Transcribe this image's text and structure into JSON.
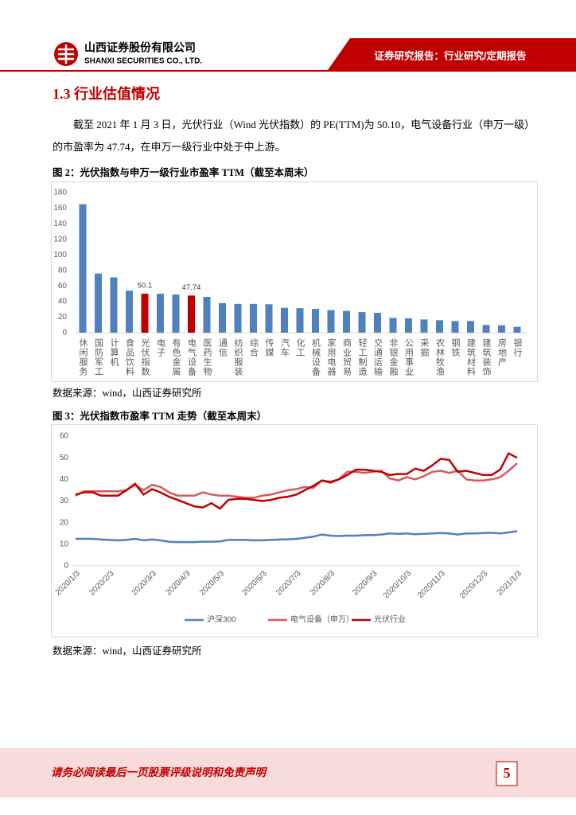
{
  "header": {
    "company_cn": "山西证券股份有限公司",
    "company_en": "SHANXI SECURITIES CO., LTD.",
    "report_type": "证券研究报告：行业研究/定期报告"
  },
  "section_title": "1.3 行业估值情况",
  "paragraph": "截至 2021 年 1 月 3 日，光伏行业（Wind 光伏指数）的 PE(TTM)为 50.10，电气设备行业（申万一级）的市盈率为 47.74，在申万一级行业中处于中上游。",
  "chart_data": [
    {
      "type": "bar",
      "title": "图 2：光伏指数与申万一级行业市盈率 TTM（截至本周末）",
      "categories": [
        "休闲服务",
        "国防军工",
        "计算机",
        "食品饮料",
        "光伏指数",
        "电子",
        "有色金属",
        "电气设备",
        "医药生物",
        "通信",
        "纺织服装",
        "综合",
        "传媒",
        "汽车",
        "化工",
        "机械设备",
        "家用电器",
        "商业贸易",
        "轻工制造",
        "交通运输",
        "非银金融",
        "公用事业",
        "采掘",
        "农林牧渔",
        "钢铁",
        "建筑材料",
        "建筑装饰",
        "房地产",
        "银行"
      ],
      "values": [
        165,
        76,
        71,
        54,
        50.1,
        50,
        49,
        47.74,
        46,
        38,
        37,
        37,
        36.5,
        32,
        31.5,
        30.5,
        29,
        28,
        26.5,
        25.5,
        19,
        18.5,
        17,
        16,
        15,
        15,
        10,
        9.5,
        7.5
      ],
      "value_labels": [
        null,
        null,
        null,
        null,
        "50.1",
        null,
        null,
        "47.74",
        null,
        null,
        null,
        null,
        null,
        null,
        null,
        null,
        null,
        null,
        null,
        null,
        null,
        null,
        null,
        null,
        null,
        null,
        null,
        null,
        null
      ],
      "colors": [
        "#4f81bd",
        "#4f81bd",
        "#4f81bd",
        "#4f81bd",
        "#c00000",
        "#4f81bd",
        "#4f81bd",
        "#c00000",
        "#4f81bd",
        "#4f81bd",
        "#4f81bd",
        "#4f81bd",
        "#4f81bd",
        "#4f81bd",
        "#4f81bd",
        "#4f81bd",
        "#4f81bd",
        "#4f81bd",
        "#4f81bd",
        "#4f81bd",
        "#4f81bd",
        "#4f81bd",
        "#4f81bd",
        "#4f81bd",
        "#4f81bd",
        "#4f81bd",
        "#4f81bd",
        "#4f81bd",
        "#4f81bd"
      ],
      "ylim": [
        0,
        180
      ],
      "yticks": [
        0,
        20,
        40,
        60,
        80,
        100,
        120,
        140,
        160,
        180
      ],
      "grid": false,
      "source": "数据来源：wind，山西证券研究所"
    },
    {
      "type": "line",
      "title": "图 3：光伏指数市盈率 TTM 走势（截至本周末）",
      "categories": [
        "2020/1/3",
        null,
        null,
        null,
        "2020/2/3",
        null,
        null,
        null,
        null,
        "2020/3/3",
        null,
        null,
        null,
        "2020/4/3",
        null,
        null,
        null,
        "2020/5/3",
        null,
        null,
        null,
        null,
        "2020/6/3",
        null,
        null,
        null,
        "2020/7/3",
        null,
        null,
        null,
        "2020/8/3",
        null,
        null,
        null,
        null,
        "2020/9/3",
        null,
        null,
        null,
        "2020/10/3",
        null,
        null,
        null,
        "2020/11/3",
        null,
        null,
        null,
        null,
        "2020/12/3",
        null,
        null,
        null,
        "2021/1/3"
      ],
      "series": [
        {
          "name": "沪深300",
          "color": "#4f81bd",
          "values": [
            12.5,
            12.5,
            12.5,
            12.2,
            12,
            11.8,
            12,
            12.5,
            11.8,
            12.2,
            11.8,
            11.2,
            11,
            11,
            11,
            11.2,
            11.2,
            11.3,
            12,
            12,
            12,
            11.8,
            11.8,
            12,
            12.2,
            12.3,
            12.5,
            13,
            13.5,
            14.5,
            14,
            13.8,
            14,
            14,
            14.2,
            14.2,
            14.5,
            15,
            14.8,
            15,
            14.6,
            14.8,
            15,
            15.2,
            15,
            14.5,
            15,
            15,
            15.2,
            15.3,
            15,
            15.5,
            16
          ]
        },
        {
          "name": "电气设备（申万）",
          "color": "#d9585a",
          "values": [
            32.5,
            34.5,
            34.5,
            34.5,
            34.5,
            34.5,
            35,
            37.5,
            35,
            37.5,
            36.5,
            34,
            32.5,
            32.5,
            32.5,
            34,
            33,
            32.5,
            32.5,
            32,
            31.5,
            31.5,
            32.5,
            33,
            34,
            35,
            35.5,
            36.5,
            36,
            39.5,
            39,
            40,
            43.5,
            43.5,
            43,
            43.5,
            44,
            40.5,
            39.5,
            41,
            40,
            41.5,
            43.5,
            44,
            43,
            44,
            40,
            39.5,
            39.5,
            40,
            41,
            44,
            47.5
          ]
        },
        {
          "name": "光伏行业",
          "color": "#c00000",
          "values": [
            33,
            34,
            34,
            32.5,
            32.5,
            32.5,
            35,
            38,
            33,
            35.5,
            34,
            32,
            30.5,
            29,
            27.5,
            27,
            29,
            26.5,
            30.5,
            31,
            31,
            30.5,
            30,
            30.5,
            31.5,
            32,
            33,
            35,
            37,
            39.5,
            38.5,
            40,
            42,
            44.5,
            44.5,
            44,
            43.5,
            42,
            42.5,
            42.5,
            45,
            44,
            46.5,
            49.5,
            49,
            43.5,
            44,
            43,
            42,
            42,
            44.5,
            52,
            50
          ]
        }
      ],
      "ylim": [
        0,
        60
      ],
      "yticks": [
        0,
        10,
        20,
        30,
        40,
        50,
        60
      ],
      "grid": false,
      "legend": "bottom",
      "source": "数据来源：wind，山西证券研究所"
    }
  ],
  "footer": {
    "disclaimer": "请务必阅读最后一页股票评级说明和免责声明",
    "page_number": "5"
  }
}
